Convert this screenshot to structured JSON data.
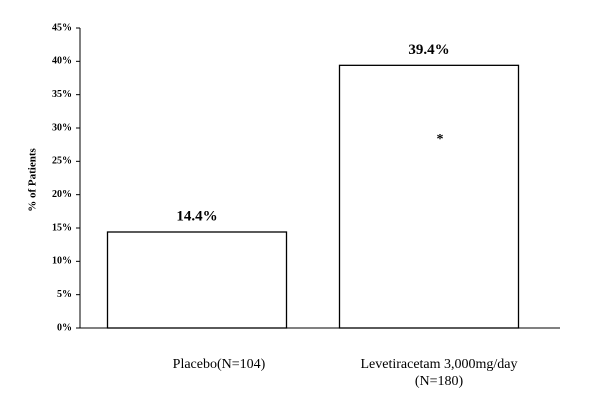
{
  "chart_data": {
    "type": "bar",
    "ylabel": "% of Patients",
    "categories": [
      "Placebo(N=104)",
      "Levetiracetam 3,000mg/day\n(N=180)"
    ],
    "values": [
      14.4,
      39.4
    ],
    "value_labels": [
      "14.4%",
      "39.4%"
    ],
    "annotation": "*",
    "color": "#ffffff",
    "ylim": [
      0,
      45
    ],
    "yticks": [
      {
        "value": 0,
        "label": "0%"
      },
      {
        "value": 5,
        "label": "5%"
      },
      {
        "value": 10,
        "label": "10%"
      },
      {
        "value": 15,
        "label": "15%"
      },
      {
        "value": 20,
        "label": "20%"
      },
      {
        "value": 25,
        "label": "25%"
      },
      {
        "value": 30,
        "label": "30%"
      },
      {
        "value": 35,
        "label": "35%"
      },
      {
        "value": 40,
        "label": "40%"
      },
      {
        "value": 45,
        "label": "45%"
      }
    ],
    "grid": false
  }
}
